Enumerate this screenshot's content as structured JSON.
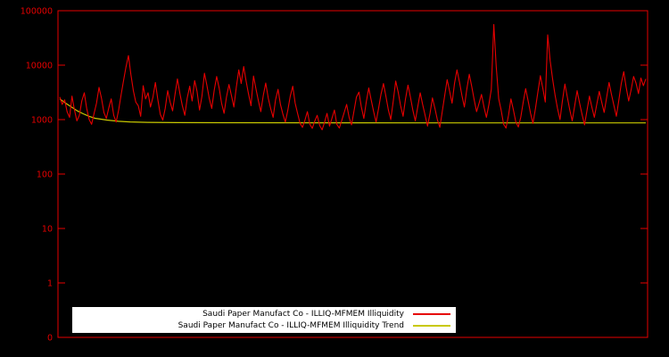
{
  "chart_data": {
    "type": "line",
    "title": "",
    "background": "#000000",
    "axis_color": "#e60000",
    "y_axis": {
      "scale": "log",
      "tick_labels": [
        "100000",
        "10000",
        "1000",
        "100",
        "10",
        "1",
        "0"
      ],
      "range_top": 100000,
      "range_bottom": 0
    },
    "x_axis": {
      "tick_labels": [],
      "label": ""
    },
    "legend": {
      "position": "bottom-left",
      "background": "#ffffff",
      "text_color": "#000000"
    },
    "series": [
      {
        "name": "Saudi Paper Manufact Co - ILLIQ-MFMEM Illiquidity",
        "color": "#e60000",
        "values": [
          2600,
          1900,
          2300,
          1400,
          1100,
          2700,
          1500,
          950,
          1200,
          2200,
          3100,
          1600,
          1000,
          820,
          1300,
          2000,
          3900,
          2500,
          1350,
          1050,
          1650,
          2400,
          1200,
          900,
          1500,
          2800,
          5200,
          9200,
          15000,
          6800,
          3400,
          2100,
          1800,
          1150,
          4200,
          2400,
          3100,
          1700,
          2600,
          4800,
          2300,
          1250,
          980,
          1600,
          3400,
          2100,
          1450,
          2900,
          5600,
          3000,
          1800,
          1200,
          2500,
          4100,
          2200,
          5200,
          3300,
          1500,
          2700,
          7100,
          4300,
          2400,
          1600,
          3500,
          6200,
          3800,
          2000,
          1300,
          2600,
          4400,
          2800,
          1700,
          3900,
          8200,
          4600,
          9400,
          5100,
          2900,
          1800,
          6300,
          3700,
          2200,
          1400,
          2800,
          4700,
          2500,
          1600,
          1100,
          2300,
          3600,
          1900,
          1250,
          900,
          1500,
          2700,
          4100,
          2000,
          1300,
          850,
          720,
          980,
          1400,
          820,
          690,
          940,
          1200,
          780,
          650,
          900,
          1300,
          760,
          1050,
          1500,
          820,
          700,
          960,
          1350,
          1900,
          1100,
          800,
          1450,
          2600,
          3200,
          1700,
          1050,
          2100,
          3800,
          2300,
          1400,
          900,
          1600,
          2900,
          4600,
          2700,
          1500,
          1000,
          2200,
          5100,
          3200,
          1800,
          1150,
          2400,
          4300,
          2600,
          1500,
          950,
          1700,
          3100,
          1900,
          1200,
          760,
          1300,
          2500,
          1600,
          1000,
          720,
          1400,
          2800,
          5400,
          3300,
          2000,
          4700,
          8200,
          4900,
          2800,
          1700,
          3600,
          6800,
          4100,
          2300,
          1400,
          2000,
          2900,
          1700,
          1100,
          1900,
          3600,
          56000,
          9500,
          2400,
          1500,
          820,
          700,
          1200,
          2400,
          1500,
          900,
          730,
          1100,
          2100,
          3700,
          2200,
          1300,
          850,
          1600,
          3200,
          6400,
          3800,
          2100,
          36000,
          12000,
          5600,
          2800,
          1600,
          1000,
          2200,
          4500,
          2600,
          1500,
          950,
          1800,
          3400,
          2000,
          1250,
          800,
          1450,
          2700,
          1700,
          1100,
          1900,
          3300,
          2100,
          1350,
          2500,
          4800,
          2900,
          1800,
          1150,
          2300,
          4600,
          7600,
          3900,
          2200,
          3500,
          6200,
          4700,
          3000,
          5800,
          4200,
          5600
        ]
      },
      {
        "name": "Saudi Paper Manufact Co - ILLIQ-MFMEM Illiquidity Trend",
        "color": "#c8c800",
        "points": [
          {
            "x": 0.0,
            "v": 2400
          },
          {
            "x": 0.01,
            "v": 2000
          },
          {
            "x": 0.02,
            "v": 1700
          },
          {
            "x": 0.03,
            "v": 1450
          },
          {
            "x": 0.04,
            "v": 1280
          },
          {
            "x": 0.05,
            "v": 1150
          },
          {
            "x": 0.06,
            "v": 1060
          },
          {
            "x": 0.08,
            "v": 980
          },
          {
            "x": 0.1,
            "v": 930
          },
          {
            "x": 0.12,
            "v": 905
          },
          {
            "x": 0.15,
            "v": 890
          },
          {
            "x": 0.2,
            "v": 880
          },
          {
            "x": 0.3,
            "v": 875
          },
          {
            "x": 0.5,
            "v": 872
          },
          {
            "x": 0.7,
            "v": 870
          },
          {
            "x": 1.0,
            "v": 870
          }
        ]
      }
    ]
  }
}
